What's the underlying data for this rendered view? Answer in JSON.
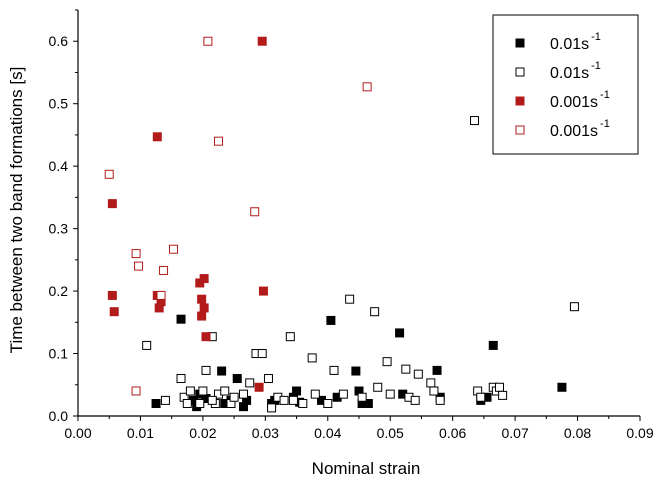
{
  "chart_data": {
    "type": "scatter",
    "title": "",
    "xlabel": "Nominal strain",
    "ylabel": "Time between two band formations [s]",
    "xlim": [
      0.0,
      0.09
    ],
    "ylim": [
      0.0,
      0.65
    ],
    "xticks": [
      "0.00",
      "0.01",
      "0.02",
      "0.03",
      "0.04",
      "0.05",
      "0.06",
      "0.07",
      "0.08",
      "0.09"
    ],
    "yticks": [
      "0.0",
      "0.1",
      "0.2",
      "0.3",
      "0.4",
      "0.5",
      "0.6"
    ],
    "xtick_values": [
      0,
      0.01,
      0.02,
      0.03,
      0.04,
      0.05,
      0.06,
      0.07,
      0.08,
      0.09
    ],
    "ytick_values": [
      0,
      0.1,
      0.2,
      0.3,
      0.4,
      0.5,
      0.6
    ],
    "grid": false,
    "legend_position": "top-right",
    "series": [
      {
        "name": "0.01s",
        "name_sup": "-1",
        "marker": "filled-square",
        "color": "#000000",
        "points": [
          [
            0.0125,
            0.02
          ],
          [
            0.0165,
            0.155
          ],
          [
            0.0185,
            0.025
          ],
          [
            0.019,
            0.015
          ],
          [
            0.0195,
            0.035
          ],
          [
            0.0205,
            0.028
          ],
          [
            0.023,
            0.072
          ],
          [
            0.0235,
            0.02
          ],
          [
            0.0245,
            0.025
          ],
          [
            0.0255,
            0.06
          ],
          [
            0.0265,
            0.015
          ],
          [
            0.027,
            0.025
          ],
          [
            0.031,
            0.02
          ],
          [
            0.0315,
            0.025
          ],
          [
            0.0345,
            0.03
          ],
          [
            0.035,
            0.04
          ],
          [
            0.0355,
            0.022
          ],
          [
            0.039,
            0.025
          ],
          [
            0.0405,
            0.153
          ],
          [
            0.0415,
            0.03
          ],
          [
            0.0445,
            0.072
          ],
          [
            0.045,
            0.04
          ],
          [
            0.0455,
            0.02
          ],
          [
            0.0465,
            0.02
          ],
          [
            0.0515,
            0.133
          ],
          [
            0.052,
            0.035
          ],
          [
            0.0575,
            0.073
          ],
          [
            0.058,
            0.03
          ],
          [
            0.0645,
            0.025
          ],
          [
            0.0655,
            0.03
          ],
          [
            0.0665,
            0.113
          ],
          [
            0.0775,
            0.046
          ]
        ]
      },
      {
        "name": "0.01s",
        "name_sup": "-1",
        "marker": "open-square",
        "color": "#000000",
        "points": [
          [
            0.011,
            0.113
          ],
          [
            0.014,
            0.025
          ],
          [
            0.0165,
            0.06
          ],
          [
            0.017,
            0.03
          ],
          [
            0.018,
            0.04
          ],
          [
            0.0175,
            0.02
          ],
          [
            0.02,
            0.04
          ],
          [
            0.0205,
            0.073
          ],
          [
            0.0215,
            0.127
          ],
          [
            0.022,
            0.02
          ],
          [
            0.0225,
            0.035
          ],
          [
            0.0235,
            0.04
          ],
          [
            0.0245,
            0.02
          ],
          [
            0.025,
            0.03
          ],
          [
            0.0265,
            0.035
          ],
          [
            0.0275,
            0.053
          ],
          [
            0.0285,
            0.1
          ],
          [
            0.0295,
            0.1
          ],
          [
            0.0305,
            0.06
          ],
          [
            0.031,
            0.013
          ],
          [
            0.032,
            0.03
          ],
          [
            0.033,
            0.025
          ],
          [
            0.034,
            0.127
          ],
          [
            0.0345,
            0.025
          ],
          [
            0.036,
            0.02
          ],
          [
            0.0375,
            0.093
          ],
          [
            0.038,
            0.035
          ],
          [
            0.04,
            0.02
          ],
          [
            0.041,
            0.073
          ],
          [
            0.0425,
            0.035
          ],
          [
            0.0435,
            0.187
          ],
          [
            0.0455,
            0.03
          ],
          [
            0.0475,
            0.167
          ],
          [
            0.048,
            0.046
          ],
          [
            0.0495,
            0.087
          ],
          [
            0.05,
            0.035
          ],
          [
            0.0525,
            0.075
          ],
          [
            0.053,
            0.03
          ],
          [
            0.054,
            0.025
          ],
          [
            0.0545,
            0.067
          ],
          [
            0.0565,
            0.053
          ],
          [
            0.057,
            0.04
          ],
          [
            0.058,
            0.025
          ],
          [
            0.0635,
            0.473
          ],
          [
            0.064,
            0.04
          ],
          [
            0.0645,
            0.03
          ],
          [
            0.0665,
            0.046
          ],
          [
            0.067,
            0.04
          ],
          [
            0.0675,
            0.046
          ],
          [
            0.068,
            0.033
          ],
          [
            0.0795,
            0.175
          ],
          [
            0.0195,
            0.02
          ],
          [
            0.0215,
            0.025
          ]
        ]
      },
      {
        "name": "0.001s",
        "name_sup": "-1",
        "marker": "filled-square",
        "color": "#b31b1b",
        "points": [
          [
            0.0055,
            0.34
          ],
          [
            0.0055,
            0.193
          ],
          [
            0.0058,
            0.167
          ],
          [
            0.0127,
            0.447
          ],
          [
            0.0127,
            0.193
          ],
          [
            0.013,
            0.173
          ],
          [
            0.0133,
            0.183
          ],
          [
            0.0195,
            0.213
          ],
          [
            0.0198,
            0.187
          ],
          [
            0.0198,
            0.16
          ],
          [
            0.0202,
            0.22
          ],
          [
            0.0202,
            0.173
          ],
          [
            0.0205,
            0.127
          ],
          [
            0.0295,
            0.6
          ],
          [
            0.0297,
            0.2
          ],
          [
            0.029,
            0.046
          ]
        ]
      },
      {
        "name": "0.001s",
        "name_sup": "-1",
        "marker": "open-square",
        "color": "#b31b1b",
        "points": [
          [
            0.005,
            0.387
          ],
          [
            0.0093,
            0.26
          ],
          [
            0.0093,
            0.04
          ],
          [
            0.0097,
            0.24
          ],
          [
            0.0133,
            0.193
          ],
          [
            0.0137,
            0.233
          ],
          [
            0.0153,
            0.267
          ],
          [
            0.0208,
            0.6
          ],
          [
            0.0225,
            0.44
          ],
          [
            0.0283,
            0.327
          ],
          [
            0.0463,
            0.527
          ]
        ]
      }
    ]
  }
}
